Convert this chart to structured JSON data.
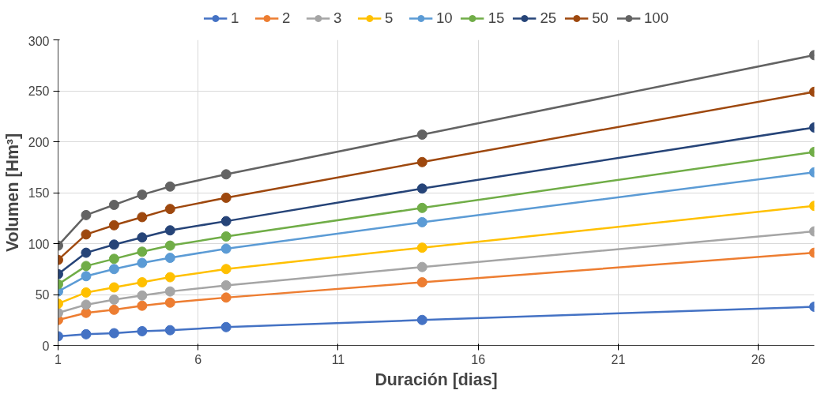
{
  "chart_data": {
    "type": "line",
    "xlabel": "Duración [dias]",
    "ylabel": "Volumen [Hm³]",
    "x": [
      1,
      2,
      3,
      4,
      5,
      7,
      14,
      28
    ],
    "xlim": [
      1,
      28
    ],
    "xticks": [
      1,
      6,
      11,
      16,
      21,
      26
    ],
    "ylim": [
      0,
      300
    ],
    "yticks": [
      0,
      50,
      100,
      150,
      200,
      250,
      300
    ],
    "grid": true,
    "legend": "top",
    "marker": "circle",
    "line_style": "solid",
    "series": [
      {
        "name": "1",
        "color": "#4472c4",
        "values": [
          9,
          11,
          12,
          14,
          15,
          18,
          25,
          38
        ]
      },
      {
        "name": "2",
        "color": "#ed7d31",
        "values": [
          25,
          32,
          35,
          39,
          42,
          47,
          62,
          91
        ]
      },
      {
        "name": "3",
        "color": "#a5a5a5",
        "values": [
          32,
          40,
          45,
          49,
          53,
          59,
          77,
          112
        ]
      },
      {
        "name": "5",
        "color": "#ffc000",
        "values": [
          41,
          52,
          57,
          62,
          67,
          75,
          96,
          137
        ]
      },
      {
        "name": "10",
        "color": "#5b9bd5",
        "values": [
          53,
          68,
          75,
          81,
          86,
          95,
          121,
          170
        ]
      },
      {
        "name": "15",
        "color": "#70ad47",
        "values": [
          60,
          78,
          85,
          92,
          98,
          107,
          135,
          190
        ]
      },
      {
        "name": "25",
        "color": "#264478",
        "values": [
          70,
          91,
          99,
          106,
          113,
          122,
          154,
          214
        ]
      },
      {
        "name": "50",
        "color": "#9e480e",
        "values": [
          84,
          109,
          118,
          126,
          134,
          145,
          180,
          249
        ]
      },
      {
        "name": "100",
        "color": "#636363",
        "values": [
          98,
          128,
          138,
          148,
          156,
          168,
          207,
          285
        ]
      }
    ]
  }
}
